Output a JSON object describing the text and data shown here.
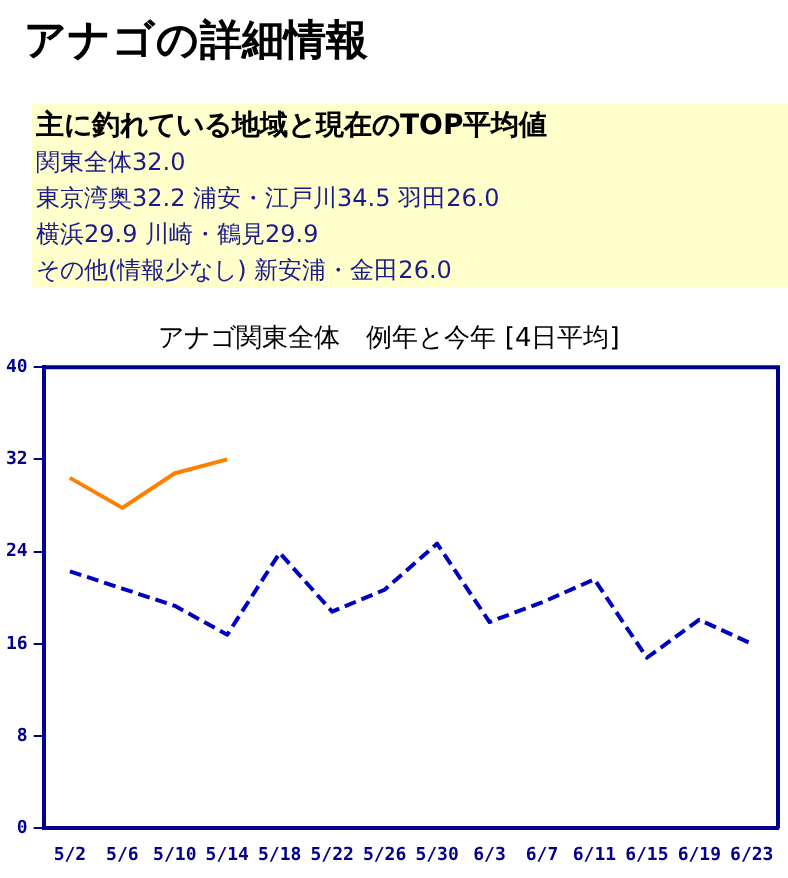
{
  "chart_data": {
    "type": "line",
    "title": "アナゴの詳細情報",
    "subtitle": "アナゴ関東全体　例年と今年 [4日平均]",
    "annotations": [
      "主に釣れている地域と現在のTOP平均値",
      "関東全体32.0",
      "東京湾奥32.2 浦安・江戸川34.5 羽田26.0",
      "横浜29.9 川崎・鶴見29.9",
      "その他(情報少なし) 新安浦・金田26.0"
    ],
    "categories": [
      "5/2",
      "5/6",
      "5/10",
      "5/14",
      "5/18",
      "5/22",
      "5/26",
      "5/30",
      "6/3",
      "6/7",
      "6/11",
      "6/15",
      "6/19",
      "6/23"
    ],
    "series": [
      {
        "color": "#ff8000",
        "line_style": "solid",
        "values": [
          30.4,
          27.8,
          30.8,
          32.0,
          null,
          null,
          null,
          null,
          null,
          null,
          null,
          null,
          null,
          null
        ]
      },
      {
        "color": "#0000c0",
        "line_style": "dashed",
        "values": [
          22.3,
          20.8,
          19.3,
          16.8,
          23.9,
          18.8,
          20.7,
          24.7,
          17.9,
          19.6,
          21.6,
          14.8,
          18.1,
          16.0
        ]
      }
    ],
    "ylim": [
      0,
      40
    ],
    "yticks": [
      0,
      8,
      16,
      24,
      32,
      40
    ],
    "grid": false,
    "legend": false,
    "marker": "none"
  }
}
